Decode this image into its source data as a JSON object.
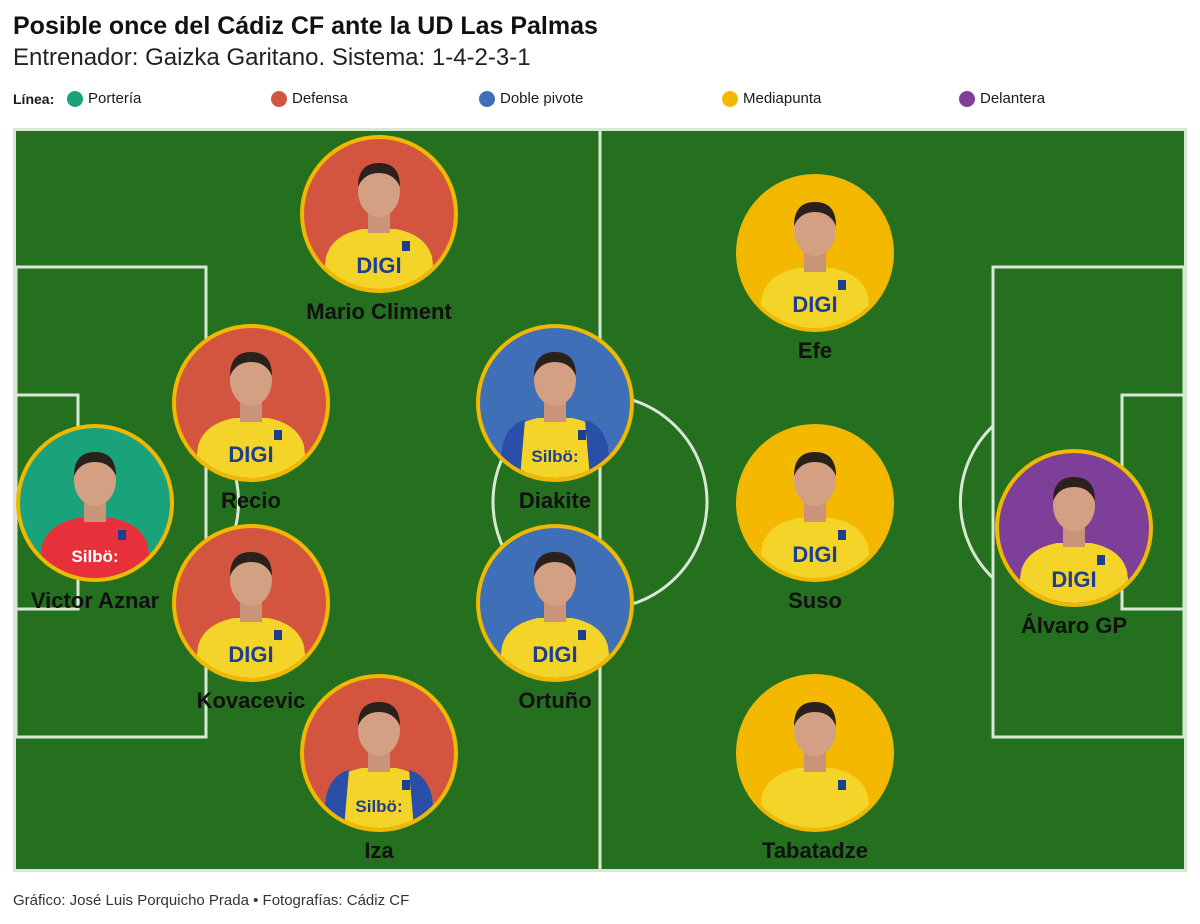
{
  "header": {
    "title": "Posible once del Cádiz CF ante la UD Las Palmas",
    "subtitle": "Entrenador: Gaizka Garitano. Sistema: 1-4-2-3-1"
  },
  "legend": {
    "label": "Línea:",
    "items": [
      {
        "label": "Portería",
        "color": "#1aa37a"
      },
      {
        "label": "Defensa",
        "color": "#d4553f"
      },
      {
        "label": "Doble pivote",
        "color": "#3f6fb6"
      },
      {
        "label": "Mediapunta",
        "color": "#f5b800"
      },
      {
        "label": "Delantera",
        "color": "#7e3f98"
      }
    ]
  },
  "line_colors": {
    "porteria": "#1aa37a",
    "defensa": "#d4553f",
    "pivote": "#3f6fb6",
    "mediapunta": "#f5b800",
    "delantera": "#7e3f98"
  },
  "players": [
    {
      "name": "Victor Aznar",
      "line": "porteria",
      "shirt_text": "Silbö:",
      "shirt": "keeper"
    },
    {
      "name": "Mario Climent",
      "line": "defensa",
      "shirt_text": "DIGI",
      "shirt": "home"
    },
    {
      "name": "Recio",
      "line": "defensa",
      "shirt_text": "DIGI",
      "shirt": "home"
    },
    {
      "name": "Kovacevic",
      "line": "defensa",
      "shirt_text": "DIGI",
      "shirt": "home"
    },
    {
      "name": "Iza",
      "line": "defensa",
      "shirt_text": "Silbö:",
      "shirt": "blue-trim"
    },
    {
      "name": "Diakite",
      "line": "pivote",
      "shirt_text": "Silbö:",
      "shirt": "blue-trim"
    },
    {
      "name": "Ortuño",
      "line": "pivote",
      "shirt_text": "DIGI",
      "shirt": "home"
    },
    {
      "name": "Efe",
      "line": "mediapunta",
      "shirt_text": "DIGI",
      "shirt": "home"
    },
    {
      "name": "Suso",
      "line": "mediapunta",
      "shirt_text": "DIGI",
      "shirt": "home"
    },
    {
      "name": "Tabatadze",
      "line": "mediapunta",
      "shirt_text": "",
      "shirt": "home"
    },
    {
      "name": "Álvaro GP",
      "line": "delantera",
      "shirt_text": "DIGI",
      "shirt": "home"
    }
  ],
  "footer": {
    "credits": "Gráfico: José Luis Porquicho Prada • Fotografías: Cádiz CF"
  }
}
